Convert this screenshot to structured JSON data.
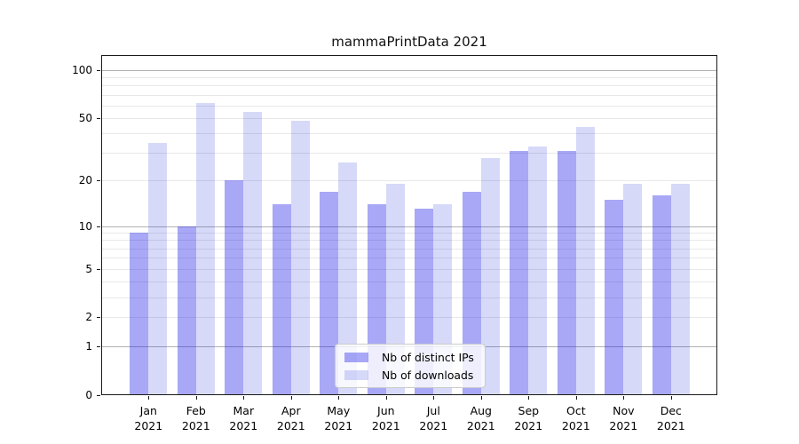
{
  "title": "mammaPrintData 2021",
  "chart_data": {
    "type": "bar",
    "title": "mammaPrintData 2021",
    "categories": [
      "Jan",
      "Feb",
      "Mar",
      "Apr",
      "May",
      "Jun",
      "Jul",
      "Aug",
      "Sep",
      "Oct",
      "Nov",
      "Dec"
    ],
    "category_year": "2021",
    "series": [
      {
        "name": "Nb of distinct IPs",
        "color": "rgba(14,14,229,0.36)",
        "color_hex": "#a4a6f1",
        "values": [
          9,
          10,
          20,
          14,
          17,
          14,
          13,
          17,
          31,
          31,
          15,
          16
        ]
      },
      {
        "name": "Nb of downloads",
        "color": "rgba(2,10,213,0.155)",
        "color_hex": "#d9dbf8",
        "values": [
          35,
          62,
          55,
          48,
          26,
          19,
          14,
          28,
          33,
          44,
          19,
          19
        ]
      }
    ],
    "xlabel": "",
    "ylabel": "",
    "yscale": "log1p",
    "ylim": [
      0,
      123
    ],
    "yticks": [
      0,
      1,
      2,
      5,
      10,
      20,
      50,
      100
    ],
    "minor_gridlines": [
      2,
      3,
      4,
      5,
      6,
      7,
      8,
      9,
      20,
      30,
      40,
      50,
      60,
      70,
      80,
      90
    ],
    "major_gridlines": [
      1,
      10,
      100
    ],
    "grid": "horizontal",
    "legend_position": "lower center"
  },
  "legend": {
    "items": [
      {
        "label": "Nb of distinct IPs"
      },
      {
        "label": "Nb of downloads"
      }
    ]
  }
}
